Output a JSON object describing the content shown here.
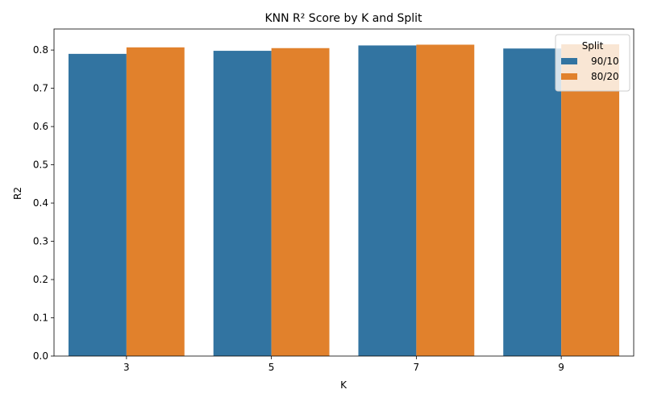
{
  "chart_data": {
    "type": "bar",
    "title": "KNN R² Score by K and Split",
    "xlabel": "K",
    "ylabel": "R2",
    "categories": [
      "3",
      "5",
      "7",
      "9"
    ],
    "series": [
      {
        "name": "90/10",
        "values": [
          0.79,
          0.798,
          0.812,
          0.804
        ],
        "color": "#3274a1"
      },
      {
        "name": "80/20",
        "values": [
          0.807,
          0.805,
          0.814,
          0.815
        ],
        "color": "#e1812c"
      }
    ],
    "ylim": [
      0,
      0.855
    ],
    "yticks": [
      "0.0",
      "0.1",
      "0.2",
      "0.3",
      "0.4",
      "0.5",
      "0.6",
      "0.7",
      "0.8"
    ],
    "grid": false,
    "legend": {
      "title": "Split",
      "placement": "top-right"
    }
  }
}
